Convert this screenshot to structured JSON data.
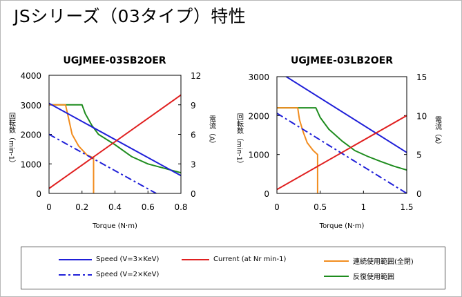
{
  "page": {
    "title": "JSシリーズ（03タイプ）特性"
  },
  "colors": {
    "speed": "#1f1fd8",
    "current": "#e02020",
    "continuous": "#f28c1e",
    "repeated": "#1e8c1e",
    "axis": "#000000"
  },
  "legend": {
    "items": [
      {
        "key": "speed3",
        "label": "Speed (V=3×KeV)",
        "color": "#1f1fd8",
        "dash": "solid"
      },
      {
        "key": "current",
        "label": "Current (at Nr min-1)",
        "color": "#e02020",
        "dash": "solid"
      },
      {
        "key": "continuous",
        "label": "連続使用範囲(全閉)",
        "color": "#f28c1e",
        "dash": "solid"
      },
      {
        "key": "speed2",
        "label": "Speed (V=2×KeV)",
        "color": "#1f1fd8",
        "dash": "dashdot"
      },
      {
        "key": "repeated",
        "label": "反復使用範囲",
        "color": "#1e8c1e",
        "dash": "solid"
      }
    ]
  },
  "chart_data": [
    {
      "type": "line",
      "title": "UGJMEE-03SB2OER",
      "xlabel": "Torque (N·m)",
      "ylabel_left": "回転数（min-1）",
      "ylabel_right": "電流（A）",
      "xlim": [
        0,
        0.8
      ],
      "ylim_left": [
        0,
        4000
      ],
      "ylim_right": [
        0,
        12
      ],
      "x_ticks": [
        "0",
        "0.2",
        "0.4",
        "0.6",
        "0.8"
      ],
      "y_left_ticks": [
        "0",
        "1000",
        "2000",
        "3000",
        "4000"
      ],
      "y_right_ticks": [
        "0",
        "3",
        "6",
        "9",
        "12"
      ],
      "series": [
        {
          "key": "speed3",
          "axis": "left",
          "x": [
            0,
            0.8
          ],
          "y": [
            3050,
            600
          ]
        },
        {
          "key": "speed2",
          "axis": "left",
          "x": [
            0,
            0.65
          ],
          "y": [
            2000,
            0
          ]
        },
        {
          "key": "current",
          "axis": "right",
          "x": [
            0,
            0.8
          ],
          "y": [
            0.5,
            10
          ]
        },
        {
          "key": "continuous",
          "axis": "left",
          "x": [
            0,
            0.1,
            0.12,
            0.14,
            0.18,
            0.23,
            0.27,
            0.27
          ],
          "y": [
            3000,
            3000,
            2500,
            2000,
            1600,
            1300,
            1200,
            0
          ]
        },
        {
          "key": "repeated",
          "axis": "left",
          "x": [
            0,
            0.2,
            0.22,
            0.26,
            0.3,
            0.4,
            0.5,
            0.6,
            0.7,
            0.8
          ],
          "y": [
            3000,
            3000,
            2700,
            2300,
            2000,
            1650,
            1250,
            1000,
            850,
            700
          ]
        }
      ]
    },
    {
      "type": "line",
      "title": "UGJMEE-03LB2OER",
      "xlabel": "Torque (N·m)",
      "ylabel_left": "回転数（min-1）",
      "ylabel_right": "電流（A）",
      "xlim": [
        0,
        1.5
      ],
      "ylim_left": [
        0,
        3000
      ],
      "ylim_right": [
        0,
        15
      ],
      "x_ticks": [
        "0",
        "0.5",
        "1",
        "1.5"
      ],
      "y_left_ticks": [
        "0",
        "1000",
        "2000",
        "3000"
      ],
      "y_right_ticks": [
        "0",
        "5",
        "10",
        "15"
      ],
      "series": [
        {
          "key": "speed3",
          "axis": "left",
          "x": [
            0,
            1.5
          ],
          "y": [
            3150,
            1050
          ]
        },
        {
          "key": "speed2",
          "axis": "left",
          "x": [
            0,
            1.5
          ],
          "y": [
            2060,
            0
          ]
        },
        {
          "key": "current",
          "axis": "right",
          "x": [
            0,
            1.5
          ],
          "y": [
            0.5,
            10
          ]
        },
        {
          "key": "continuous",
          "axis": "left",
          "x": [
            0,
            0.24,
            0.26,
            0.3,
            0.35,
            0.42,
            0.47,
            0.47
          ],
          "y": [
            2200,
            2200,
            1900,
            1600,
            1300,
            1100,
            1000,
            0
          ]
        },
        {
          "key": "repeated",
          "axis": "left",
          "x": [
            0,
            0.45,
            0.5,
            0.6,
            0.75,
            0.9,
            1.05,
            1.2,
            1.35,
            1.5
          ],
          "y": [
            2200,
            2200,
            1950,
            1650,
            1350,
            1100,
            950,
            820,
            700,
            600
          ]
        }
      ]
    }
  ]
}
